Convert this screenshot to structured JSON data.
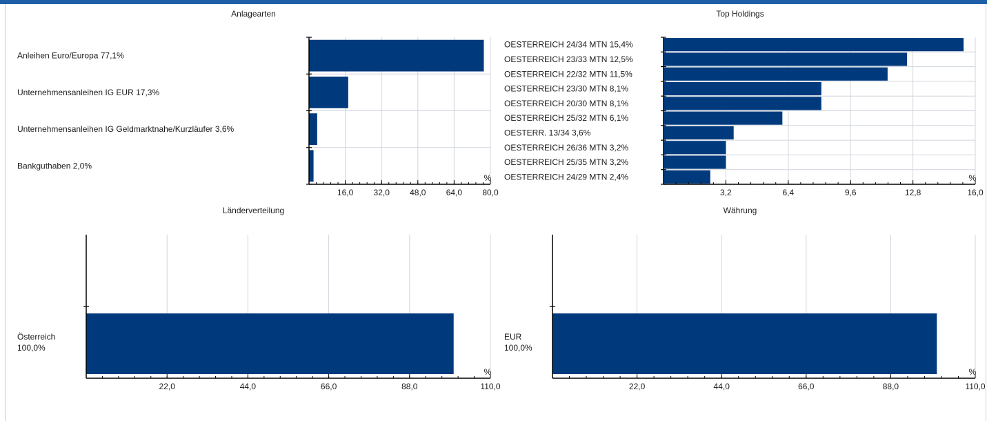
{
  "colors": {
    "bar": "#003a7d",
    "grid": "#d0d4dd",
    "axis": "#000000",
    "topbar": "#1f5fa8"
  },
  "panels": {
    "asset_classes": {
      "title": "Anlagearten"
    },
    "top_holdings": {
      "title": "Top Holdings"
    },
    "countries": {
      "title": "Länderverteilung"
    },
    "currency": {
      "title": "Währung"
    }
  },
  "chart_data": [
    {
      "id": "asset_classes",
      "type": "bar",
      "orientation": "horizontal",
      "title": "Anlagearten",
      "unit": "%",
      "categories": [
        "Anleihen Euro/Europa 77,1%",
        "Unternehmensanleihen IG EUR 17,3%",
        "Unternehmensanleihen IG Geldmarktnahe/Kurzläufer 3,6%",
        "Bankguthaben 2,0%"
      ],
      "values": [
        77.1,
        17.3,
        3.6,
        2.0
      ],
      "xlim": [
        0,
        80
      ],
      "ticks": [
        16,
        32,
        48,
        64,
        80
      ],
      "tick_labels": [
        "16,0",
        "32,0",
        "48,0",
        "64,0",
        "80,0"
      ],
      "grid": true
    },
    {
      "id": "top_holdings",
      "type": "bar",
      "orientation": "horizontal",
      "title": "Top Holdings",
      "unit": "%",
      "categories": [
        "OESTERREICH 24/34 MTN 15,4%",
        "OESTERREICH 23/33 MTN 12,5%",
        "OESTERREICH 22/32 MTN 11,5%",
        "OESTERREICH 23/30 MTN 8,1%",
        "OESTERREICH 20/30 MTN 8,1%",
        "OESTERREICH 25/32 MTN 6,1%",
        "OESTERR. 13/34 3,6%",
        "OESTERREICH 26/36 MTN 3,2%",
        "OESTERREICH 25/35 MTN 3,2%",
        "OESTERREICH 24/29 MTN 2,4%"
      ],
      "values": [
        15.4,
        12.5,
        11.5,
        8.1,
        8.1,
        6.1,
        3.6,
        3.2,
        3.2,
        2.4
      ],
      "xlim": [
        0,
        16
      ],
      "ticks": [
        3.2,
        6.4,
        9.6,
        12.8,
        16
      ],
      "tick_labels": [
        "3,2",
        "6,4",
        "9,6",
        "12,8",
        "16,0"
      ],
      "grid": true
    },
    {
      "id": "countries",
      "type": "bar",
      "orientation": "horizontal",
      "title": "Länderverteilung",
      "unit": "%",
      "categories": [
        "Österreich 100,0%"
      ],
      "category_lines": [
        [
          "Österreich",
          "100,0%"
        ]
      ],
      "values": [
        100.0
      ],
      "xlim": [
        0,
        110
      ],
      "ticks": [
        22,
        44,
        66,
        88,
        110
      ],
      "tick_labels": [
        "22,0",
        "44,0",
        "66,0",
        "88,0",
        "110,0"
      ],
      "grid": true
    },
    {
      "id": "currency",
      "type": "bar",
      "orientation": "horizontal",
      "title": "Währung",
      "unit": "%",
      "categories": [
        "EUR 100,0%"
      ],
      "category_lines": [
        [
          "EUR",
          "100,0%"
        ]
      ],
      "values": [
        100.0
      ],
      "xlim": [
        0,
        110
      ],
      "ticks": [
        22,
        44,
        66,
        88,
        110
      ],
      "tick_labels": [
        "22,0",
        "44,0",
        "66,0",
        "88,0",
        "110,0"
      ],
      "grid": true
    }
  ]
}
